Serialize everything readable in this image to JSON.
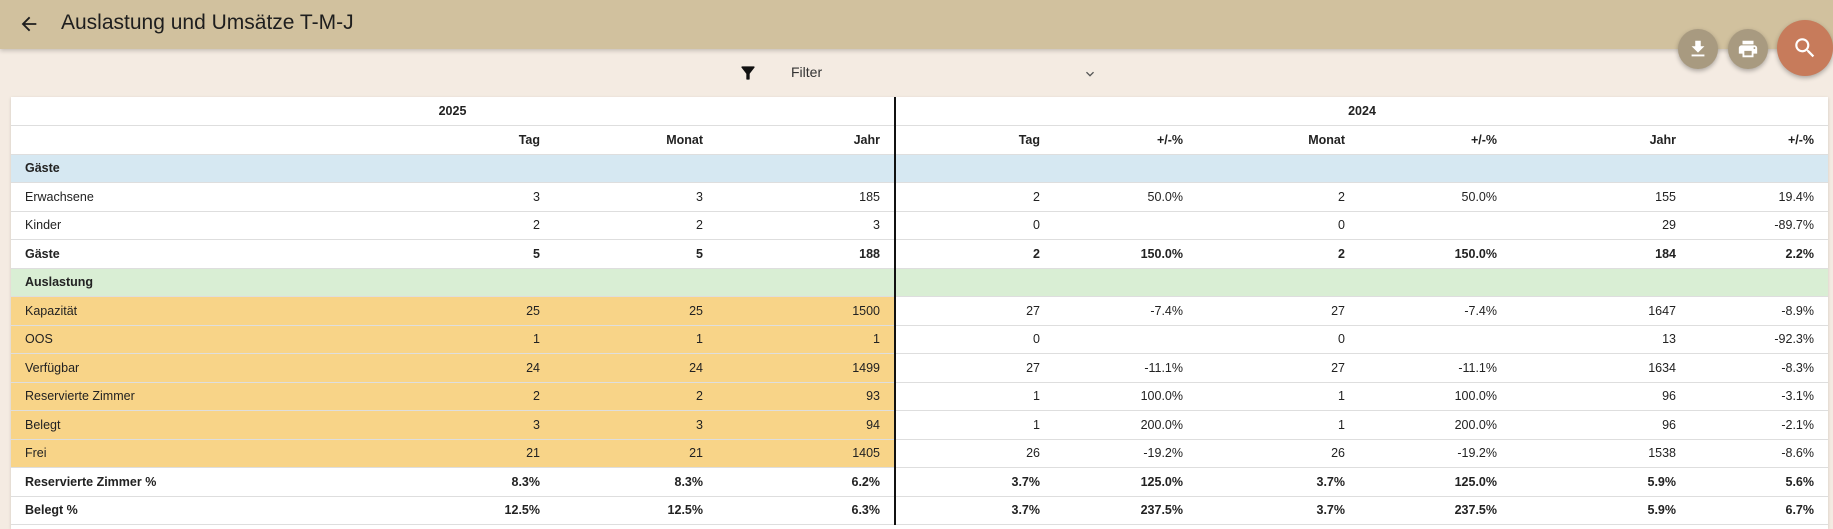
{
  "app": {
    "title": "Auslastung und Umsätze T-M-J"
  },
  "icons": {
    "back": "arrow-back-icon",
    "download": "download-icon",
    "print": "print-icon",
    "search": "search-icon",
    "filter": "filter-icon",
    "chevron": "chevron-down-icon"
  },
  "colors": {
    "topbar": "#d1c19e",
    "background": "#f4ebe2",
    "fab_small": "#a89a80",
    "fab_search": "#c77b5b",
    "section_guests": "#d6e8f2",
    "section_util": "#d9eed4",
    "highlight": "#f8d488"
  },
  "filter": {
    "label": "Filter"
  },
  "table": {
    "year_current": "2025",
    "year_previous": "2024",
    "columns": [
      "",
      "Tag",
      "Monat",
      "Jahr",
      "Tag",
      "+/-%",
      "Monat",
      "+/-%",
      "Jahr",
      "+/-%"
    ],
    "rows": [
      {
        "type": "section-guests",
        "label": "Gäste",
        "cells": [
          "",
          "",
          "",
          "",
          "",
          "",
          "",
          "",
          ""
        ]
      },
      {
        "type": "normal",
        "label": "Erwachsene",
        "cells": [
          "3",
          "3",
          "185",
          "2",
          "50.0%",
          "2",
          "50.0%",
          "155",
          "19.4%"
        ]
      },
      {
        "type": "normal",
        "label": "Kinder",
        "cells": [
          "2",
          "2",
          "3",
          "0",
          "",
          "0",
          "",
          "29",
          "-89.7%"
        ]
      },
      {
        "type": "bold",
        "label": "Gäste",
        "cells": [
          "5",
          "5",
          "188",
          "2",
          "150.0%",
          "2",
          "150.0%",
          "184",
          "2.2%"
        ]
      },
      {
        "type": "section-util",
        "label": "Auslastung",
        "cells": [
          "",
          "",
          "",
          "",
          "",
          "",
          "",
          "",
          ""
        ]
      },
      {
        "type": "hl",
        "label": "Kapazität",
        "cells": [
          "25",
          "25",
          "1500",
          "27",
          "-7.4%",
          "27",
          "-7.4%",
          "1647",
          "-8.9%"
        ]
      },
      {
        "type": "hl",
        "label": "OOS",
        "cells": [
          "1",
          "1",
          "1",
          "0",
          "",
          "0",
          "",
          "13",
          "-92.3%"
        ]
      },
      {
        "type": "hl",
        "label": "Verfügbar",
        "cells": [
          "24",
          "24",
          "1499",
          "27",
          "-11.1%",
          "27",
          "-11.1%",
          "1634",
          "-8.3%"
        ]
      },
      {
        "type": "hl",
        "label": "Reservierte Zimmer",
        "cells": [
          "2",
          "2",
          "93",
          "1",
          "100.0%",
          "1",
          "100.0%",
          "96",
          "-3.1%"
        ]
      },
      {
        "type": "hl",
        "label": "Belegt",
        "cells": [
          "3",
          "3",
          "94",
          "1",
          "200.0%",
          "1",
          "200.0%",
          "96",
          "-2.1%"
        ]
      },
      {
        "type": "hl",
        "label": "Frei",
        "cells": [
          "21",
          "21",
          "1405",
          "26",
          "-19.2%",
          "26",
          "-19.2%",
          "1538",
          "-8.6%"
        ]
      },
      {
        "type": "bold",
        "label": "Reservierte Zimmer %",
        "cells": [
          "8.3%",
          "8.3%",
          "6.2%",
          "3.7%",
          "125.0%",
          "3.7%",
          "125.0%",
          "5.9%",
          "5.6%"
        ]
      },
      {
        "type": "bold",
        "label": "Belegt %",
        "cells": [
          "12.5%",
          "12.5%",
          "6.3%",
          "3.7%",
          "237.5%",
          "3.7%",
          "237.5%",
          "5.9%",
          "6.7%"
        ]
      }
    ]
  }
}
